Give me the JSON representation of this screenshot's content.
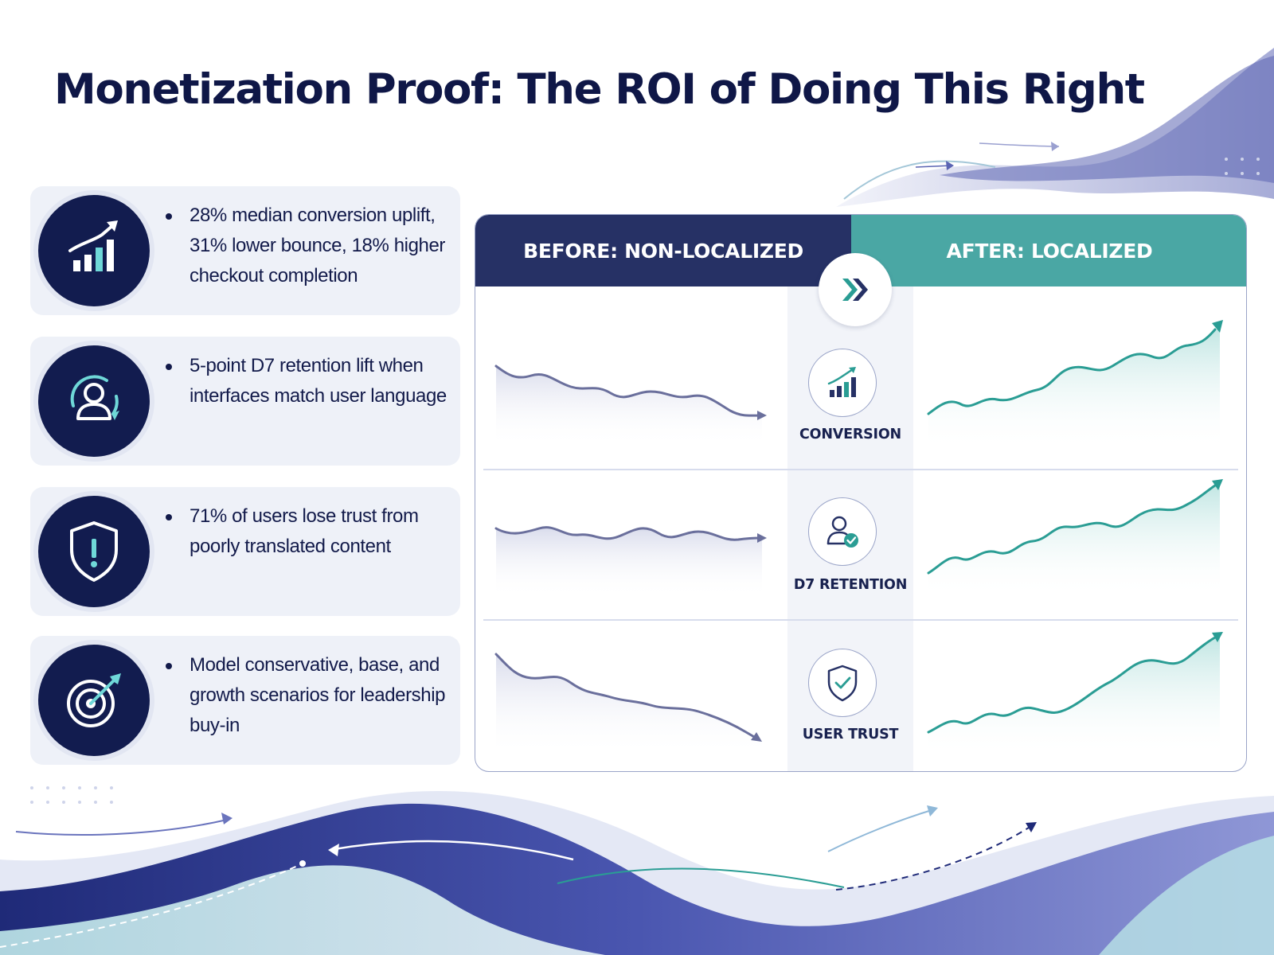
{
  "title": "Monetization Proof: The ROI of Doing This Right",
  "cards": [
    {
      "icon": "bar-chart-growth-icon",
      "text": "28% median conversion uplift, 31% lower bounce, 18% higher checkout completion"
    },
    {
      "icon": "user-retention-icon",
      "text": "5-point D7 retention lift when interfaces match user language"
    },
    {
      "icon": "shield-warning-icon",
      "text": "71% of users lose trust from poorly translated content"
    },
    {
      "icon": "target-arrow-icon",
      "text": "Model conservative, base, and growth scenarios for leadership buy-in"
    }
  ],
  "comparison": {
    "before_label": "BEFORE: NON-LOCALIZED",
    "after_label": "AFTER: LOCALIZED",
    "rows": [
      {
        "metric": "CONVERSION",
        "icon": "bar-chart-growth-icon"
      },
      {
        "metric": "D7 RETENTION",
        "icon": "user-check-icon"
      },
      {
        "metric": "USER TRUST",
        "icon": "shield-check-icon"
      }
    ]
  },
  "colors": {
    "navy": "#121c4f",
    "before_header": "#263165",
    "after_header": "#4aa7a4",
    "teal_line": "#2a9d94",
    "before_line": "#6a6f9c",
    "accent_cyan": "#6fd8d8"
  }
}
